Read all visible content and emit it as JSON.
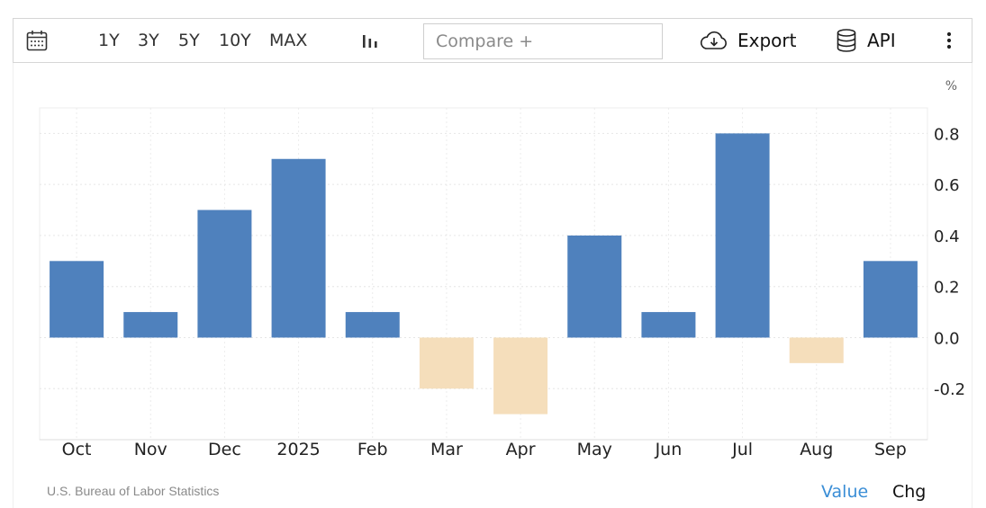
{
  "toolbar": {
    "ranges": [
      "1Y",
      "3Y",
      "5Y",
      "10Y",
      "MAX"
    ],
    "compare_placeholder": "Compare +",
    "export_label": "Export",
    "api_label": "API",
    "icons": {
      "calendar": "calendar-icon",
      "chart_type": "bar-chart-icon",
      "export": "cloud-download-icon",
      "api": "database-icon",
      "menu": "vertical-dots-icon"
    }
  },
  "chart_data": {
    "type": "bar",
    "categories": [
      "Oct",
      "Nov",
      "Dec",
      "2025",
      "Feb",
      "Mar",
      "Apr",
      "May",
      "Jun",
      "Jul",
      "Aug",
      "Sep"
    ],
    "values": [
      0.3,
      0.1,
      0.5,
      0.7,
      0.1,
      -0.2,
      -0.3,
      0.4,
      0.1,
      0.8,
      -0.1,
      0.3
    ],
    "unit": "%",
    "yticks": [
      "0.8",
      "0.6",
      "0.4",
      "0.2",
      "0.0",
      "-0.2"
    ],
    "ylim": [
      -0.4,
      0.9
    ],
    "grid": true,
    "y_axis_side": "right",
    "colors": {
      "positive": "#4f81bd",
      "negative": "#f5debb"
    }
  },
  "footer": {
    "source": "U.S. Bureau of Labor Statistics",
    "toggle_value": "Value",
    "toggle_chg": "Chg"
  }
}
